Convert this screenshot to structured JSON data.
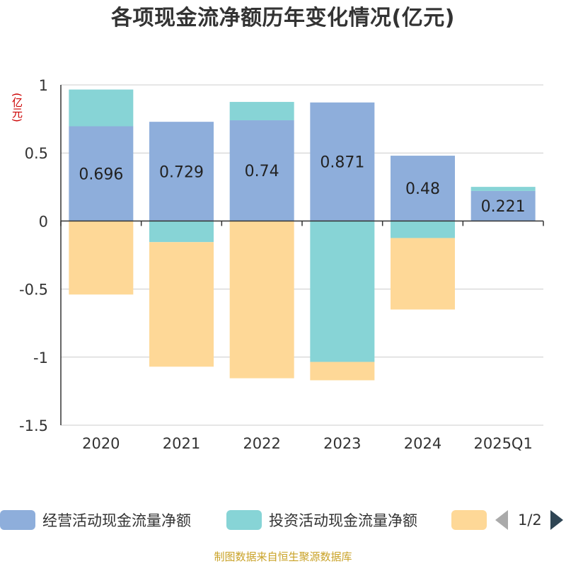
{
  "title": "各项现金流净额历年变化情况(亿元)",
  "y_unit": "(亿元)",
  "source": "制图数据来自恒生聚源数据库",
  "legend": {
    "items": [
      {
        "label": "经营活动现金流量净额",
        "color": "#8eaedb"
      },
      {
        "label": "投资活动现金流量净额",
        "color": "#87d4d6"
      },
      {
        "label": "",
        "color": "#fed897"
      }
    ],
    "page": "1/2"
  },
  "chart_data": {
    "type": "bar",
    "stacked": true,
    "categories": [
      "2020",
      "2021",
      "2022",
      "2023",
      "2024",
      "2025Q1"
    ],
    "series": [
      {
        "name": "经营活动现金流量净额",
        "color": "#8eaedb",
        "values": [
          0.696,
          0.729,
          0.74,
          0.871,
          0.48,
          0.221
        ],
        "show_labels": true
      },
      {
        "name": "投资活动现金流量净额",
        "color": "#87d4d6",
        "values": [
          0.27,
          -0.155,
          0.135,
          -1.035,
          -0.125,
          0.03
        ],
        "show_labels": false
      },
      {
        "name": "",
        "color": "#fed897",
        "values": [
          -0.54,
          -0.915,
          -1.155,
          -0.135,
          -0.525,
          0
        ],
        "show_labels": false
      }
    ],
    "yticks": [
      1,
      0.5,
      0,
      -0.5,
      -1,
      -1.5
    ],
    "ytick_labels": [
      "1",
      "0.5",
      "0",
      "-0.5",
      "-1",
      "-1.5"
    ],
    "ylim": [
      -1.5,
      1
    ],
    "grid": true,
    "legend_position": "bottom"
  }
}
